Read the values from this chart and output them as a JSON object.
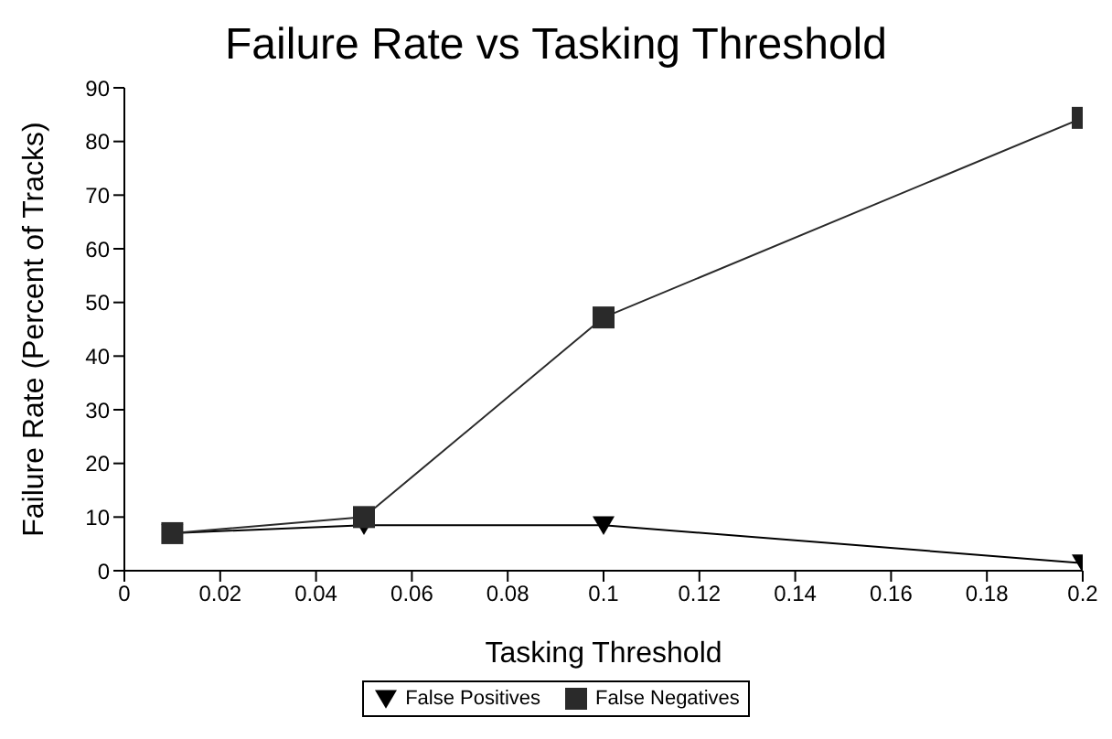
{
  "chart_data": {
    "type": "line",
    "title": "Failure Rate vs Tasking Threshold",
    "xlabel": "Tasking Threshold",
    "ylabel": "Failure Rate (Percent of Tracks)",
    "x": [
      0.01,
      0.05,
      0.1,
      0.2
    ],
    "series": [
      {
        "name": "False Positives",
        "color": "#000000",
        "marker": "triangle",
        "values": [
          7,
          8.5,
          8.5,
          1.4
        ]
      },
      {
        "name": "False Negatives",
        "color": "#2a2a2a",
        "marker": "square",
        "values": [
          7,
          10,
          47.2,
          84.4
        ]
      }
    ],
    "xlim": [
      0,
      0.2
    ],
    "xticks": [
      0,
      0.02,
      0.04,
      0.06,
      0.08,
      0.1,
      0.12,
      0.14,
      0.16,
      0.18,
      0.2
    ],
    "ylim": [
      0,
      90
    ],
    "yticks": [
      0,
      10,
      20,
      30,
      40,
      50,
      60,
      70,
      80,
      90
    ],
    "grid": false,
    "legend": "bottom",
    "line_style": "solid"
  }
}
